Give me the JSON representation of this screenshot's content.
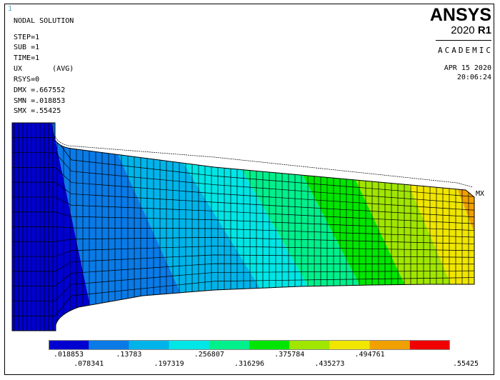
{
  "window_number": "1",
  "header_lines": [
    "NODAL SOLUTION",
    "STEP=1",
    "SUB =1",
    "TIME=1",
    "UX       (AVG)",
    "RSYS=0",
    "DMX =.667552",
    "SMN =.018853",
    "SMX =.55425"
  ],
  "brand": {
    "name": "ANSYS",
    "version_year": "2020",
    "version_release": "R1",
    "edition": "ACADEMIC"
  },
  "date": "APR 15 2020",
  "time": "20:06:24",
  "max_marker": "MX",
  "contour": {
    "colors": [
      "#0000d0",
      "#0a7ae6",
      "#00b4ea",
      "#00e6e6",
      "#00f08c",
      "#00e600",
      "#a0e600",
      "#f0e600",
      "#f0a000",
      "#f00000"
    ],
    "labels_top": [
      ".018853",
      ".13783",
      ".256807",
      ".375784",
      ".494761"
    ],
    "labels_bottom": [
      ".078341",
      ".197319",
      ".316296",
      ".435273",
      ".55425"
    ]
  }
}
